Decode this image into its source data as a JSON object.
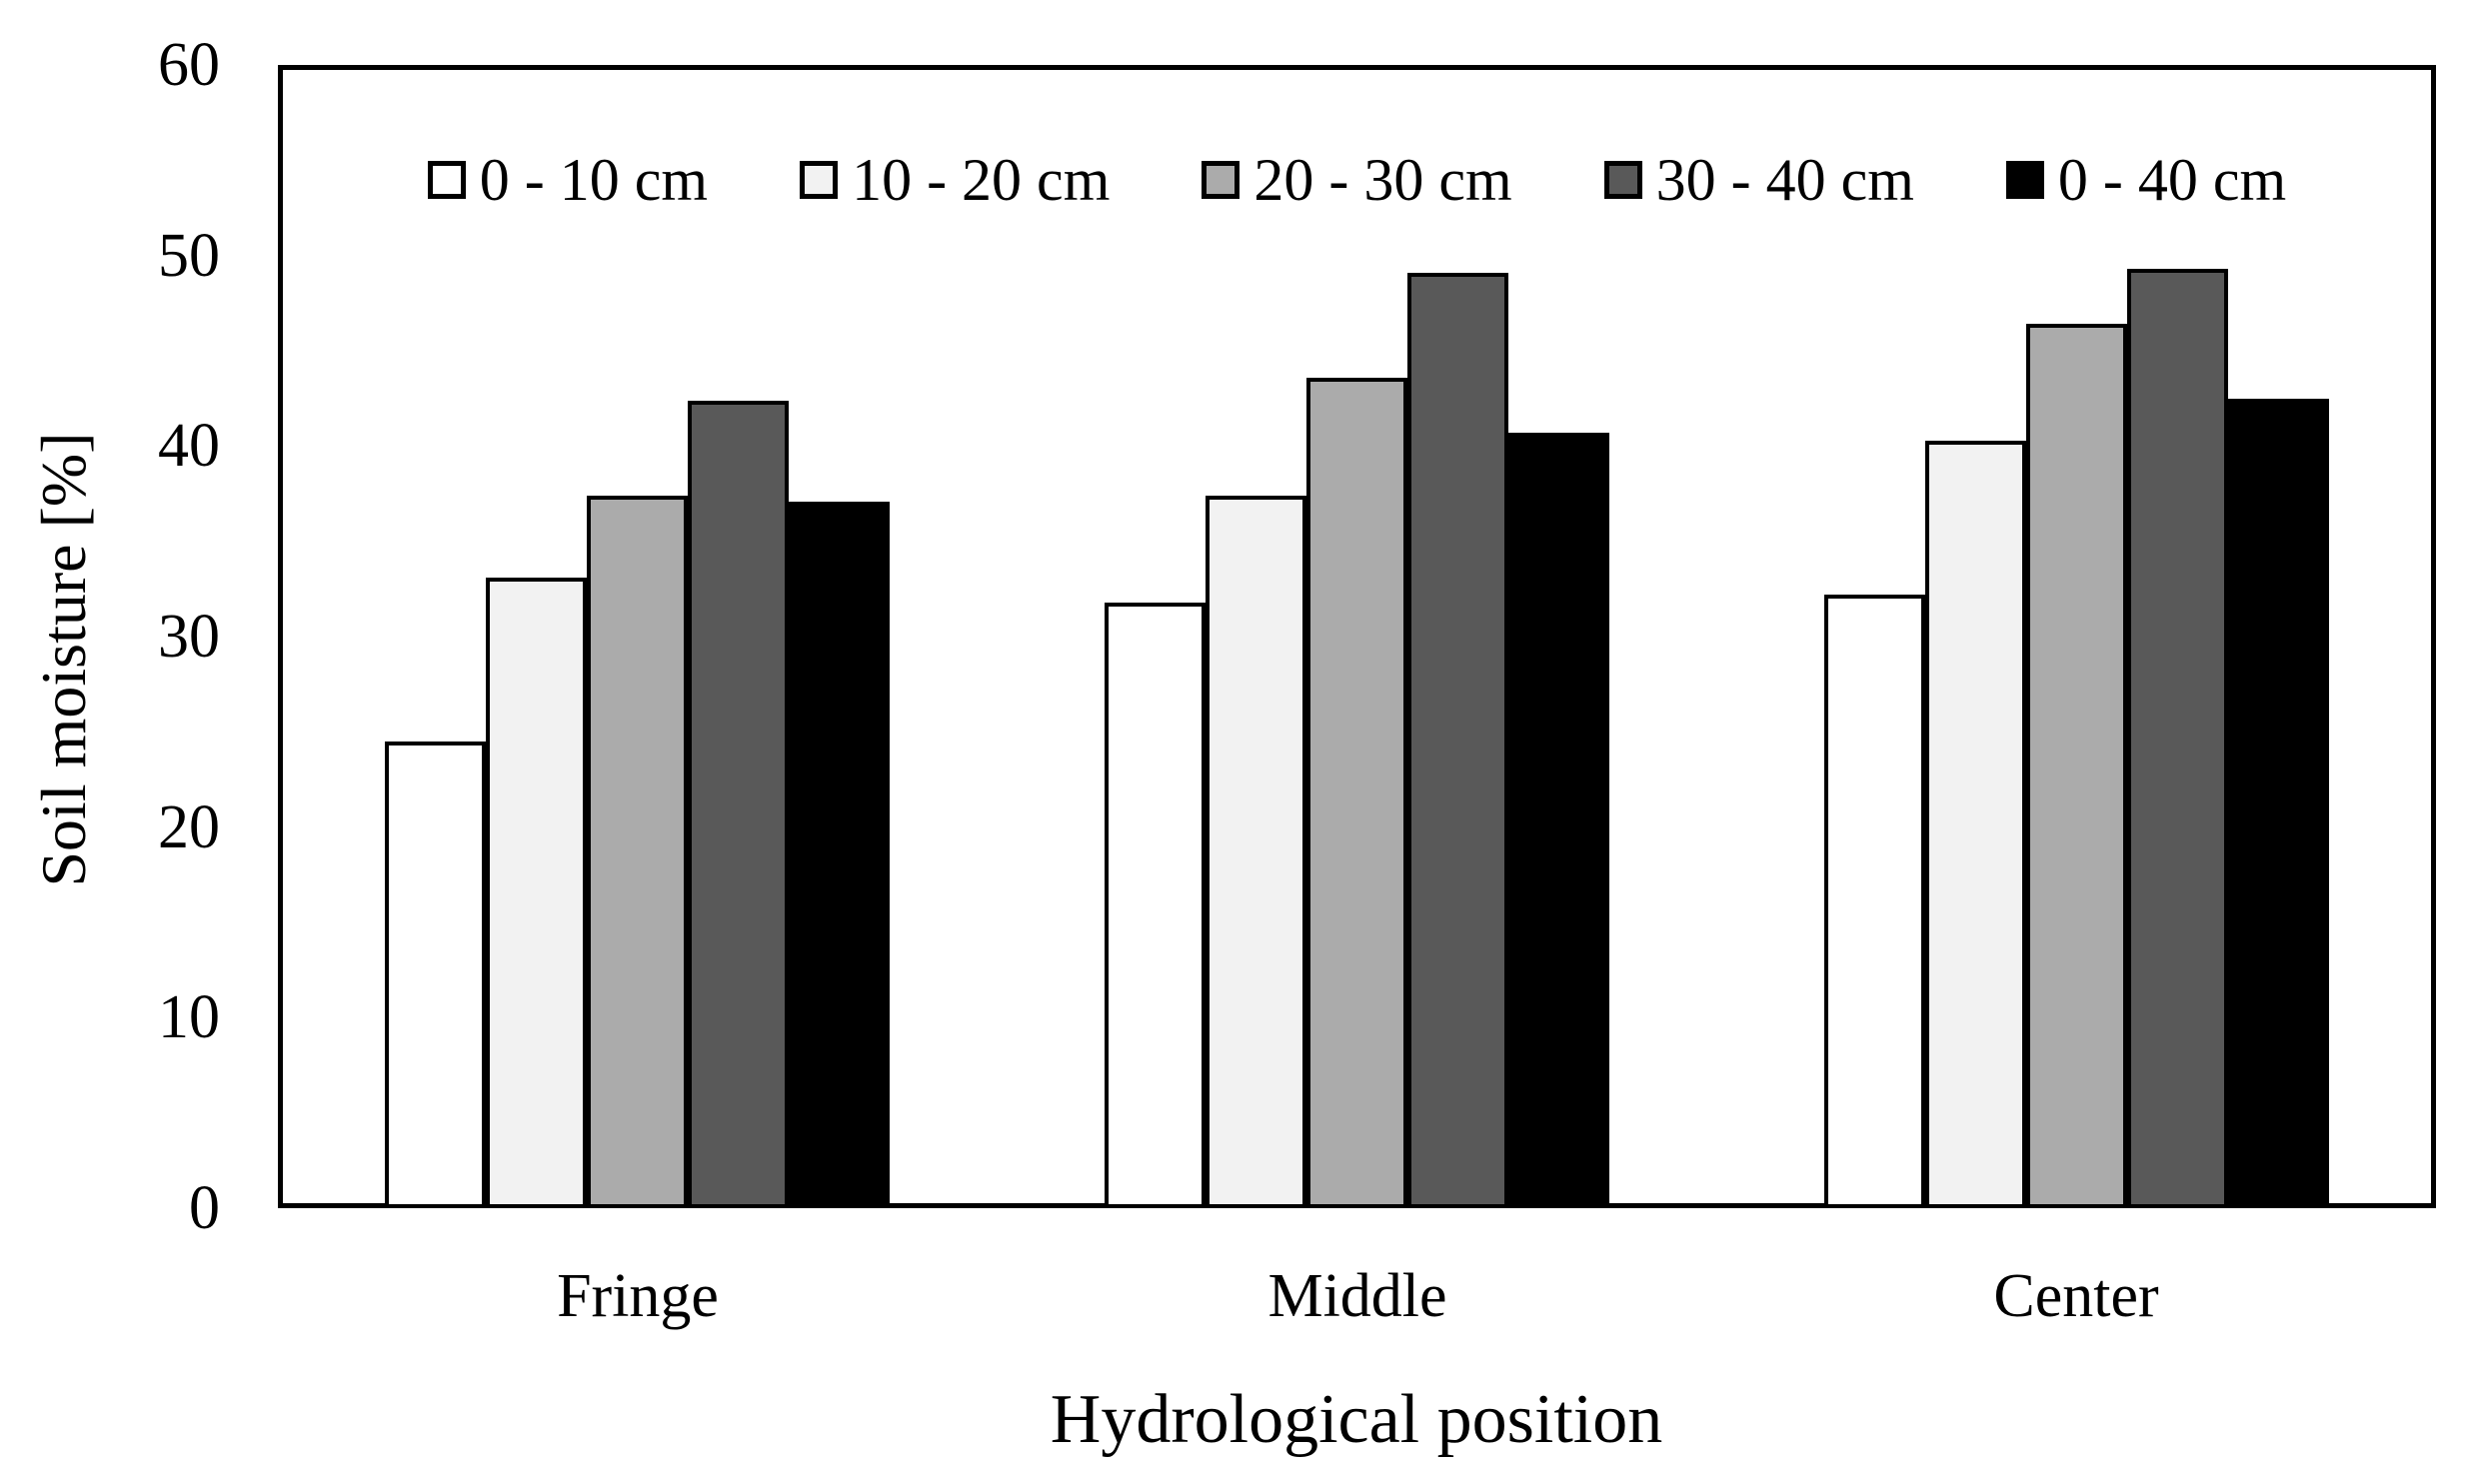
{
  "chart_data": {
    "type": "bar",
    "title": "",
    "categories": [
      "Fringe",
      "Middle",
      "Center"
    ],
    "series": [
      {
        "name": "0 - 10 cm",
        "color": "#ffffff",
        "values": [
          24.5,
          31.8,
          32.2
        ]
      },
      {
        "name": "10 - 20 cm",
        "color": "#f2f2f2",
        "values": [
          33.1,
          37.4,
          40.3
        ]
      },
      {
        "name": "20 - 30 cm",
        "color": "#ababab",
        "values": [
          37.4,
          43.6,
          46.4
        ]
      },
      {
        "name": "30 - 40 cm",
        "color": "#595959",
        "values": [
          42.4,
          49.1,
          49.3
        ]
      },
      {
        "name": "0 - 40 cm",
        "color": "#000000",
        "values": [
          37.1,
          40.7,
          42.5
        ]
      }
    ],
    "xlabel": "Hydrological position",
    "ylabel": "Soil moisture [%]",
    "ylim": [
      0,
      60
    ],
    "yticks": [
      0,
      10,
      20,
      30,
      40,
      50,
      60
    ],
    "legend_position": "top-center-inside",
    "grid": "off",
    "bar_border_color": "#000000",
    "axis_color": "#000000",
    "background": "#ffffff"
  }
}
